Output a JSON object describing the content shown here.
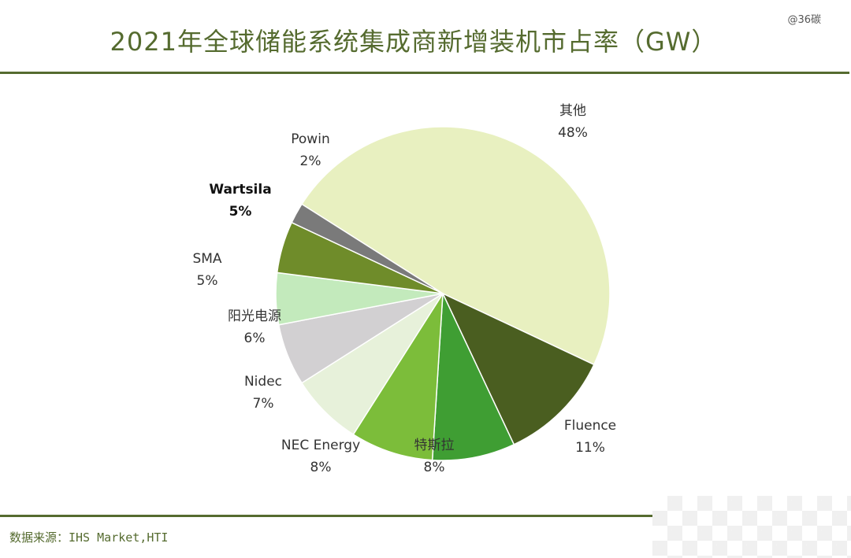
{
  "title": "2021年全球储能系统集成商新增装机市占率（GW）",
  "watermark": "@36碳",
  "source": "数据来源：IHS Market,HTI",
  "chart_data": {
    "type": "pie",
    "title": "2021年全球储能系统集成商新增装机市占率（GW）",
    "slices": [
      {
        "name": "其他",
        "value": 48,
        "label": "48%",
        "color": "#e8f0c0"
      },
      {
        "name": "Fluence",
        "value": 11,
        "label": "11%",
        "color": "#4a5e20"
      },
      {
        "name": "特斯拉",
        "value": 8,
        "label": "8%",
        "color": "#3f9e33"
      },
      {
        "name": "NEC Energy",
        "value": 8,
        "label": "8%",
        "color": "#7cbd3a"
      },
      {
        "name": "Nidec",
        "value": 7,
        "label": "7%",
        "color": "#e7f1da"
      },
      {
        "name": "阳光电源",
        "value": 6,
        "label": "6%",
        "color": "#d2d0d2"
      },
      {
        "name": "SMA",
        "value": 5,
        "label": "5%",
        "color": "#c3eabc"
      },
      {
        "name": "Wartsila",
        "value": 5,
        "label": "5%",
        "color": "#6f8c2a",
        "bold": true
      },
      {
        "name": "Powin",
        "value": 2,
        "label": "2%",
        "color": "#7a7a7a"
      }
    ]
  }
}
